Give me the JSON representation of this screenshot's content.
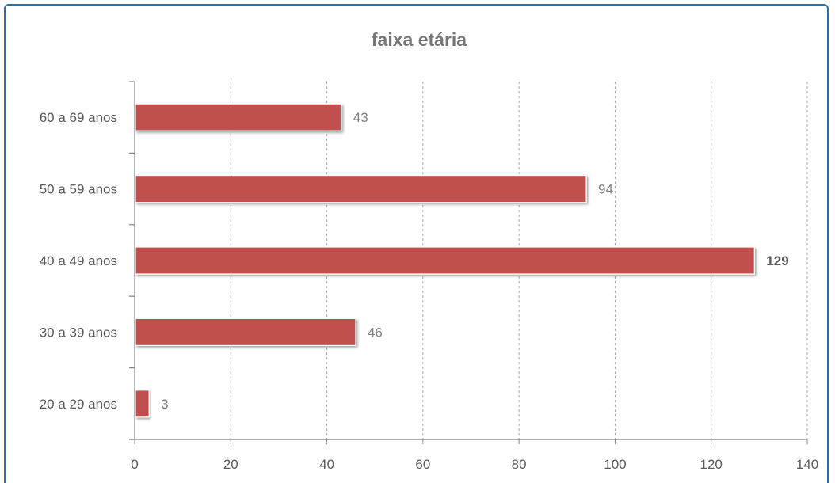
{
  "chart_data": {
    "type": "bar",
    "orientation": "horizontal",
    "title": "faixa etária",
    "categories": [
      "60 a 69 anos",
      "50 a 59 anos",
      "40 a 49 anos",
      "30 a 39 anos",
      "20 a 29 anos"
    ],
    "values": [
      43,
      94,
      129,
      46,
      3
    ],
    "data_labels": [
      "43",
      "94",
      "129",
      "46",
      "3"
    ],
    "bold_labels": [
      "129"
    ],
    "xlim": [
      0,
      140
    ],
    "x_ticks": [
      "0",
      "20",
      "40",
      "60",
      "80",
      "100",
      "120",
      "140"
    ],
    "grid": "vertical-dashed",
    "legend": "none",
    "colors": {
      "bar": "#c0504d",
      "grid": "#a6a6a6",
      "axis": "#868686",
      "frame": "#2f6fa8"
    }
  }
}
